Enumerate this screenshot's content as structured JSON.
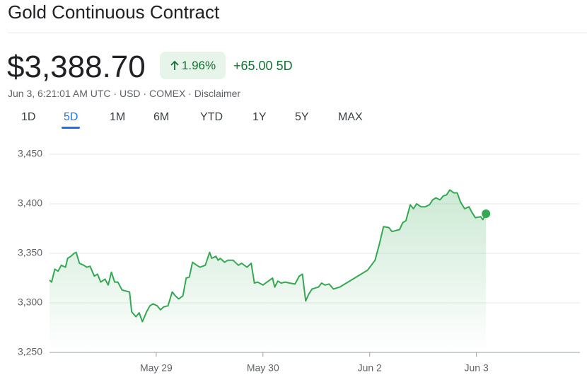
{
  "header": {
    "title": "Gold Continuous Contract",
    "price": "$3,388.70",
    "change_pct": "1.96%",
    "change_abs": "+65.00",
    "period": "5D",
    "meta": "Jun 3, 6:21:01 AM UTC · USD · COMEX · Disclaimer",
    "tabs": [
      "1D",
      "5D",
      "1M",
      "6M",
      "YTD",
      "1Y",
      "5Y",
      "MAX"
    ],
    "selected_tab": 1
  },
  "chart_data": {
    "type": "line",
    "color": "#34a853",
    "grid": true,
    "x": [
      -1.0,
      -0.98,
      -0.95,
      -0.92,
      -0.89,
      -0.85,
      -0.83,
      -0.8,
      -0.77,
      -0.75,
      -0.72,
      -0.68,
      -0.65,
      -0.62,
      -0.58,
      -0.55,
      -0.52,
      -0.48,
      -0.45,
      -0.42,
      -0.39,
      -0.36,
      -0.32,
      -0.25,
      -0.23,
      -0.19,
      -0.16,
      -0.13,
      -0.09,
      -0.06,
      -0.03,
      0.01,
      0.04,
      0.07,
      0.11,
      0.15,
      0.18,
      0.21,
      0.25,
      0.28,
      0.31,
      0.34,
      0.38,
      0.41,
      0.46,
      0.5,
      0.52,
      0.56,
      0.58,
      0.6,
      0.64,
      0.67,
      0.72,
      0.77,
      0.8,
      0.85,
      0.89,
      0.92,
      0.95,
      1.0,
      1.05,
      1.09,
      1.11,
      1.14,
      1.17,
      1.21,
      1.25,
      1.3,
      1.34,
      1.37,
      1.4,
      1.43,
      1.46,
      1.52,
      1.55,
      1.58,
      1.62,
      1.66,
      1.72,
      1.98,
      2.05,
      2.09,
      2.13,
      2.18,
      2.21,
      2.28,
      2.31,
      2.34,
      2.38,
      2.41,
      2.44,
      2.48,
      2.52,
      2.56,
      2.59,
      2.62,
      2.66,
      2.69,
      2.72,
      2.75,
      2.79,
      2.82,
      2.85,
      2.89,
      2.93,
      2.96,
      2.99,
      3.04,
      3.06,
      3.09
    ],
    "values": [
      3323,
      3321,
      3334,
      3332,
      3338,
      3336,
      3345,
      3347,
      3350,
      3351,
      3340,
      3338,
      3336,
      3337,
      3327,
      3329,
      3321,
      3324,
      3318,
      3331,
      3321,
      3321,
      3313,
      3311,
      3291,
      3286,
      3290,
      3281,
      3291,
      3297,
      3299,
      3297,
      3293,
      3296,
      3297,
      3311,
      3307,
      3304,
      3307,
      3325,
      3326,
      3341,
      3338,
      3336,
      3338,
      3351,
      3345,
      3347,
      3343,
      3345,
      3341,
      3343,
      3343,
      3338,
      3340,
      3336,
      3340,
      3320,
      3321,
      3318,
      3322,
      3325,
      3316,
      3322,
      3320,
      3321,
      3320,
      3319,
      3327,
      3329,
      3302,
      3309,
      3314,
      3316,
      3320,
      3318,
      3319,
      3314,
      3316,
      3333,
      3343,
      3359,
      3377,
      3376,
      3372,
      3374,
      3381,
      3383,
      3399,
      3395,
      3400,
      3397,
      3397,
      3399,
      3404,
      3406,
      3404,
      3408,
      3409,
      3414,
      3411,
      3411,
      3402,
      3395,
      3397,
      3391,
      3386,
      3387,
      3384,
      3390
    ],
    "xlim": [
      -1,
      3.97
    ],
    "xticks": [
      {
        "value": 0,
        "label": "May 29"
      },
      {
        "value": 1,
        "label": "May 30"
      },
      {
        "value": 2,
        "label": "Jun 2"
      },
      {
        "value": 3,
        "label": "Jun 3"
      }
    ],
    "ylim": [
      3250,
      3450
    ],
    "yticks": [
      {
        "value": 3250,
        "label": "3,250"
      },
      {
        "value": 3300,
        "label": "3,300"
      },
      {
        "value": 3350,
        "label": "3,350"
      },
      {
        "value": 3400,
        "label": "3,400"
      },
      {
        "value": 3450,
        "label": "3,450"
      }
    ]
  }
}
